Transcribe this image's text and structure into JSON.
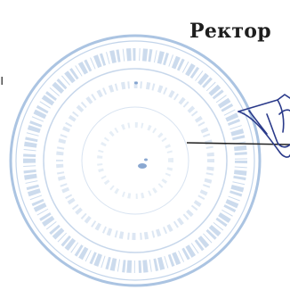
{
  "document": {
    "position_title": "Ректор"
  },
  "stamp": {
    "color": "#8fb0d8",
    "seal_text": ""
  },
  "signature": {
    "color": "#2a3a8a",
    "line_color": "#222222"
  },
  "edge": {
    "mark": "ı"
  }
}
